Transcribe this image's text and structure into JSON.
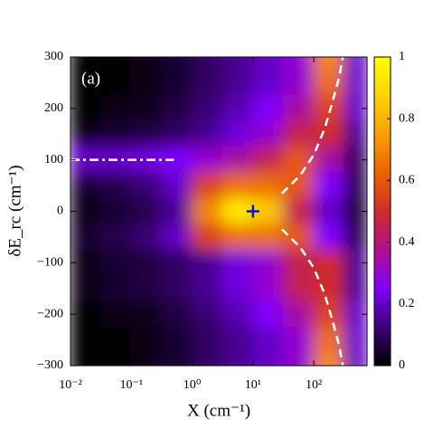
{
  "chart_data": {
    "type": "heatmap",
    "annotation": "(a)",
    "xlabel": "X (cm⁻¹)",
    "ylabel": "δE_rc (cm⁻¹)",
    "xscale": "log",
    "xlim": [
      0.01,
      750
    ],
    "xticks": [
      {
        "value": 0.01,
        "label": "10⁻²"
      },
      {
        "value": 0.1,
        "label": "10⁻¹"
      },
      {
        "value": 1,
        "label": "10⁰"
      },
      {
        "value": 10,
        "label": "10¹"
      },
      {
        "value": 100,
        "label": "10²"
      }
    ],
    "ylim": [
      -300,
      300
    ],
    "yticks": [
      {
        "value": -300,
        "label": "−300"
      },
      {
        "value": -200,
        "label": "−200"
      },
      {
        "value": -100,
        "label": "−100"
      },
      0,
      100,
      200,
      300
    ],
    "x_edges": [
      0.01,
      0.0316,
      0.1,
      0.316,
      1,
      3.16,
      10,
      31.6,
      100,
      316,
      750
    ],
    "y": [
      300,
      250,
      200,
      150,
      100,
      50,
      0,
      -50,
      -100,
      -150,
      -200,
      -250,
      -300
    ],
    "z": [
      [
        0,
        0,
        0.02,
        0.05,
        0.1,
        0.15,
        0.2,
        0.3,
        0.7,
        0.2
      ],
      [
        0,
        0,
        0.02,
        0.05,
        0.1,
        0.15,
        0.2,
        0.3,
        0.65,
        0.2
      ],
      [
        0,
        0.02,
        0.03,
        0.07,
        0.12,
        0.18,
        0.25,
        0.35,
        0.55,
        0.2
      ],
      [
        0.02,
        0.05,
        0.07,
        0.1,
        0.15,
        0.22,
        0.3,
        0.45,
        0.5,
        0.15
      ],
      [
        0.2,
        0.2,
        0.22,
        0.25,
        0.3,
        0.35,
        0.45,
        0.6,
        0.35,
        0.1
      ],
      [
        0.05,
        0.08,
        0.12,
        0.2,
        0.55,
        0.65,
        0.65,
        0.6,
        0.25,
        0.08
      ],
      [
        0.02,
        0.05,
        0.08,
        0.15,
        0.7,
        0.95,
        0.85,
        0.45,
        0.2,
        0.05
      ],
      [
        0.05,
        0.08,
        0.12,
        0.2,
        0.55,
        0.65,
        0.65,
        0.6,
        0.25,
        0.08
      ],
      [
        0.02,
        0.05,
        0.07,
        0.1,
        0.15,
        0.22,
        0.3,
        0.45,
        0.5,
        0.15
      ],
      [
        0.02,
        0.05,
        0.07,
        0.1,
        0.15,
        0.22,
        0.3,
        0.45,
        0.5,
        0.15
      ],
      [
        0,
        0.02,
        0.03,
        0.07,
        0.12,
        0.18,
        0.25,
        0.35,
        0.55,
        0.2
      ],
      [
        0,
        0,
        0.02,
        0.05,
        0.1,
        0.15,
        0.2,
        0.3,
        0.65,
        0.2
      ],
      [
        0,
        0,
        0.02,
        0.05,
        0.1,
        0.15,
        0.2,
        0.3,
        0.7,
        0.2
      ]
    ],
    "zlim": [
      0,
      1
    ],
    "zticks": [
      0,
      0.2,
      0.4,
      0.6,
      0.8,
      1
    ],
    "colormap": [
      "#000000",
      "#3c0078",
      "#8000ff",
      "#b0108c",
      "#d02c28",
      "#ec6400",
      "#f8a000",
      "#fcd400",
      "#ffff00"
    ],
    "lines": [
      {
        "x": [
          0.01,
          0.5
        ],
        "y": [
          100,
          100
        ],
        "color": "#ffffff",
        "dash": "dashdot"
      },
      {
        "x": [
          30,
          60,
          100,
          150,
          200,
          260,
          300
        ],
        "y": [
          35,
          70,
          110,
          160,
          210,
          260,
          300
        ],
        "color": "#ffffff",
        "dash": "dashed"
      },
      {
        "x": [
          30,
          60,
          100,
          150,
          200,
          260,
          300
        ],
        "y": [
          -35,
          -70,
          -110,
          -160,
          -210,
          -260,
          -300
        ],
        "color": "#ffffff",
        "dash": "dashed"
      }
    ],
    "marker": {
      "x": 10,
      "y": 0,
      "color": "#1010d0"
    }
  }
}
